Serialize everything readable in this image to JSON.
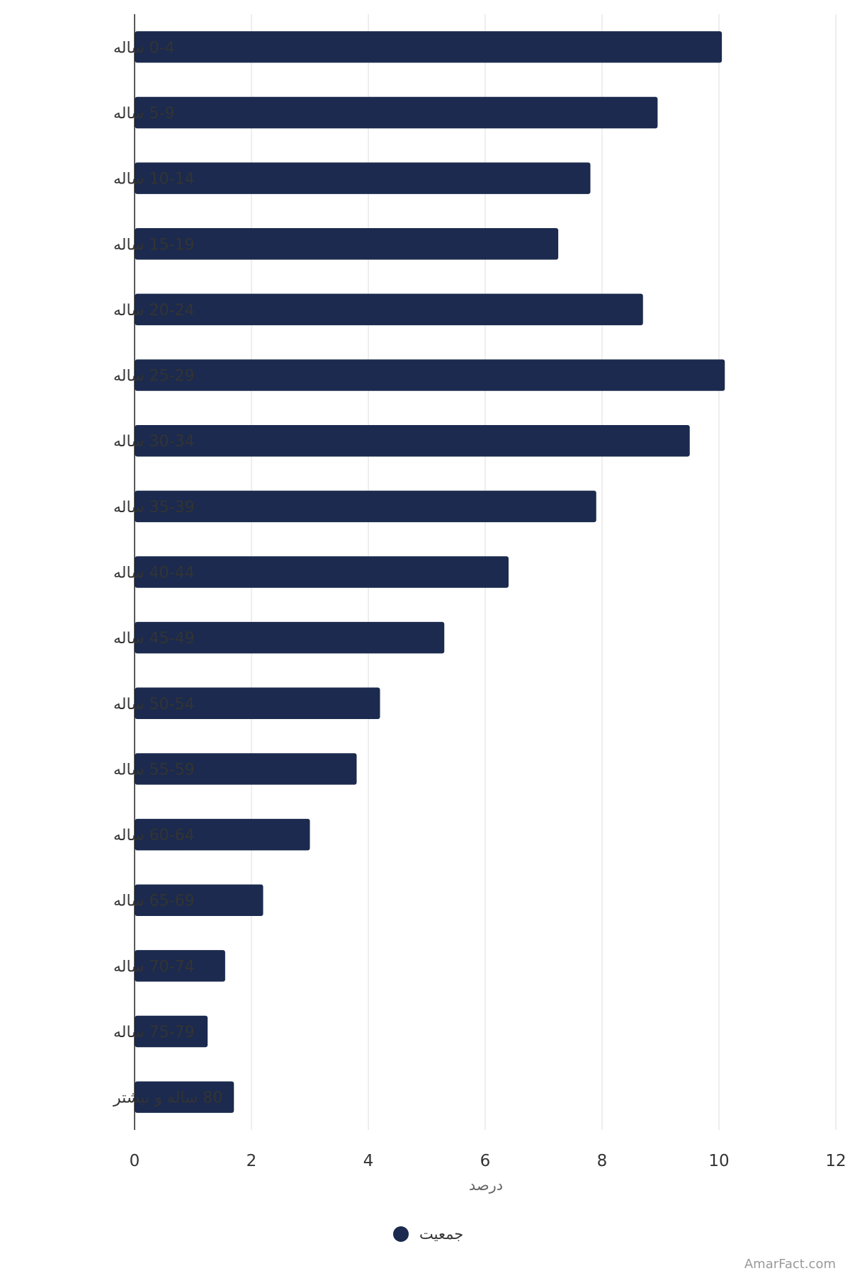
{
  "chart_data": {
    "type": "bar",
    "orientation": "horizontal",
    "categories": [
      "0-4 ساله",
      "5-9 ساله",
      "10-14 ساله",
      "15-19 ساله",
      "20-24 ساله",
      "25-29 ساله",
      "30-34 ساله",
      "35-39 ساله",
      "40-44 ساله",
      "45-49 ساله",
      "50-54 ساله",
      "55-59 ساله",
      "60-64 ساله",
      "65-69 ساله",
      "70-74 ساله",
      "75-79 ساله",
      "80 ساله و بیشتر"
    ],
    "series": [
      {
        "name": "جمعیت",
        "color": "#1b2a4e",
        "values": [
          10.05,
          8.95,
          7.8,
          7.25,
          8.7,
          10.1,
          9.5,
          7.9,
          6.4,
          5.3,
          4.2,
          3.8,
          3.0,
          2.2,
          1.55,
          1.25,
          1.7
        ]
      }
    ],
    "xlabel": "درصد",
    "xlim": [
      0,
      12
    ],
    "xticks": [
      0,
      2,
      4,
      6,
      8,
      10,
      12
    ],
    "grid": true,
    "legend": "bottom-center"
  },
  "watermark": "AmarFact.com"
}
